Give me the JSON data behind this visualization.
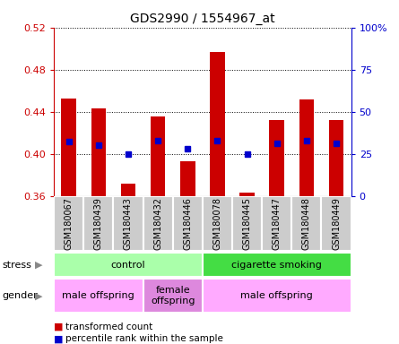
{
  "title": "GDS2990 / 1554967_at",
  "samples": [
    "GSM180067",
    "GSM180439",
    "GSM180443",
    "GSM180432",
    "GSM180446",
    "GSM180078",
    "GSM180445",
    "GSM180447",
    "GSM180448",
    "GSM180449"
  ],
  "bar_values": [
    0.453,
    0.443,
    0.372,
    0.436,
    0.393,
    0.497,
    0.363,
    0.432,
    0.452,
    0.432
  ],
  "bar_base": 0.36,
  "percentile_values": [
    0.412,
    0.408,
    0.4,
    0.413,
    0.405,
    0.413,
    0.4,
    0.41,
    0.413,
    0.41
  ],
  "ylim": [
    0.36,
    0.52
  ],
  "yticks_left": [
    0.36,
    0.4,
    0.44,
    0.48,
    0.52
  ],
  "ytick_labels_left": [
    "0.36",
    "0.40",
    "0.44",
    "0.48",
    "0.52"
  ],
  "yticks_right_vals": [
    0,
    25,
    50,
    75,
    100
  ],
  "ytick_labels_right": [
    "0",
    "25",
    "50",
    "75",
    "100%"
  ],
  "bar_color": "#cc0000",
  "percentile_color": "#0000cc",
  "stress_groups": [
    {
      "label": "control",
      "start": 0,
      "end": 5,
      "color": "#aaffaa"
    },
    {
      "label": "cigarette smoking",
      "start": 5,
      "end": 10,
      "color": "#44dd44"
    }
  ],
  "gender_groups": [
    {
      "label": "male offspring",
      "start": 0,
      "end": 3,
      "color": "#ffaaff"
    },
    {
      "label": "female\noffspring",
      "start": 3,
      "end": 5,
      "color": "#dd88dd"
    },
    {
      "label": "male offspring",
      "start": 5,
      "end": 10,
      "color": "#ffaaff"
    }
  ],
  "legend_items": [
    {
      "label": "transformed count",
      "color": "#cc0000"
    },
    {
      "label": "percentile rank within the sample",
      "color": "#0000cc"
    }
  ],
  "ylabel_color_left": "#cc0000",
  "ylabel_color_right": "#0000cc",
  "tick_label_area_color": "#cccccc",
  "background_color": "#ffffff"
}
